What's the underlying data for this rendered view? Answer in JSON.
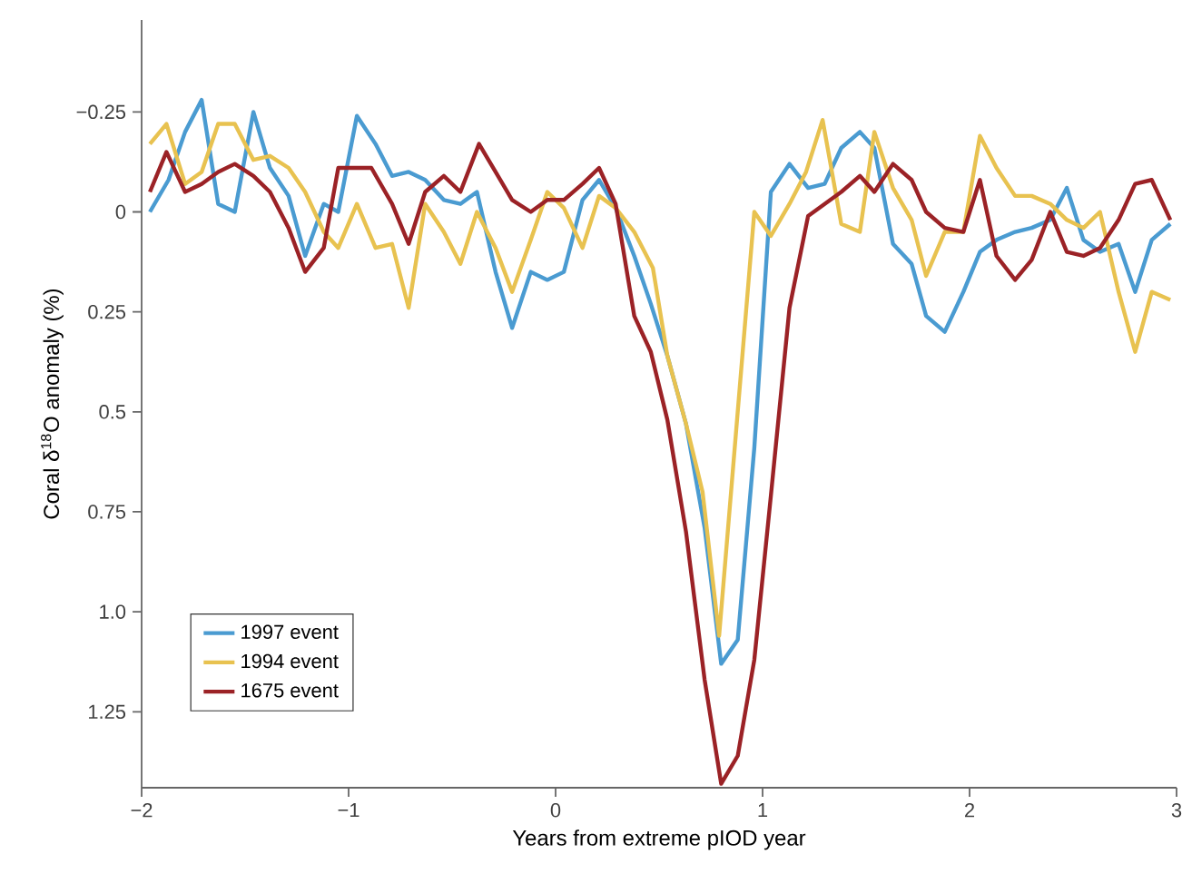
{
  "chart_data": {
    "type": "line",
    "xlabel": "Years from extreme pIOD year",
    "ylabel": "Coral δ$^{18}$O anomaly (%)",
    "xlim": [
      -2,
      3
    ],
    "ylim": [
      1.44,
      -0.48
    ],
    "xticks": [
      {
        "value": -2,
        "label": "−2"
      },
      {
        "value": -1,
        "label": "−1"
      },
      0,
      1,
      2,
      3
    ],
    "yticks": [
      {
        "value": -0.25,
        "label": "−0.25"
      },
      0,
      0.25,
      0.5,
      0.75,
      {
        "value": 1,
        "label": "1.0"
      },
      1.25
    ],
    "legend": "bottom left",
    "grid": false,
    "marker": "none",
    "line_style": "solid",
    "series": [
      {
        "name": "1997 event",
        "color": "#4a9bd1",
        "x": [
          -1.96,
          -1.87,
          -1.79,
          -1.71,
          -1.63,
          -1.55,
          -1.46,
          -1.38,
          -1.29,
          -1.21,
          -1.12,
          -1.05,
          -0.96,
          -0.87,
          -0.79,
          -0.71,
          -0.63,
          -0.54,
          -0.46,
          -0.38,
          -0.29,
          -0.21,
          -0.12,
          -0.04,
          0.04,
          0.13,
          0.21,
          0.29,
          0.38,
          0.46,
          0.54,
          0.63,
          0.72,
          0.8,
          0.88,
          0.96,
          1.04,
          1.13,
          1.22,
          1.3,
          1.38,
          1.47,
          1.54,
          1.63,
          1.72,
          1.79,
          1.88,
          1.97,
          2.05,
          2.13,
          2.22,
          2.3,
          2.39,
          2.47,
          2.55,
          2.63,
          2.72,
          2.8,
          2.88,
          2.97
        ],
        "values": [
          0,
          -0.08,
          -0.2,
          -0.28,
          -0.02,
          0,
          -0.25,
          -0.11,
          -0.04,
          0.11,
          -0.02,
          0,
          -0.24,
          -0.17,
          -0.09,
          -0.1,
          -0.08,
          -0.03,
          -0.02,
          -0.05,
          0.15,
          0.29,
          0.15,
          0.17,
          0.15,
          -0.03,
          -0.08,
          -0.01,
          0.11,
          0.23,
          0.36,
          0.53,
          0.79,
          1.13,
          1.07,
          0.59,
          -0.05,
          -0.12,
          -0.06,
          -0.07,
          -0.16,
          -0.2,
          -0.16,
          0.08,
          0.13,
          0.26,
          0.3,
          0.2,
          0.1,
          0.07,
          0.05,
          0.04,
          0.02,
          -0.06,
          0.07,
          0.1,
          0.08,
          0.2,
          0.07,
          0.03
        ]
      },
      {
        "name": "1994 event",
        "color": "#e8c250",
        "x": [
          -1.96,
          -1.88,
          -1.79,
          -1.71,
          -1.63,
          -1.55,
          -1.46,
          -1.38,
          -1.29,
          -1.21,
          -1.12,
          -1.05,
          -0.96,
          -0.87,
          -0.79,
          -0.71,
          -0.63,
          -0.54,
          -0.46,
          -0.38,
          -0.29,
          -0.21,
          -0.12,
          -0.04,
          0.04,
          0.13,
          0.21,
          0.29,
          0.38,
          0.47,
          0.54,
          0.63,
          0.71,
          0.79,
          0.96,
          1.04,
          1.13,
          1.21,
          1.29,
          1.38,
          1.47,
          1.54,
          1.63,
          1.72,
          1.79,
          1.88,
          1.97,
          2.05,
          2.13,
          2.22,
          2.3,
          2.39,
          2.47,
          2.55,
          2.63,
          2.72,
          2.8,
          2.88,
          2.97
        ],
        "values": [
          -0.17,
          -0.22,
          -0.07,
          -0.1,
          -0.22,
          -0.22,
          -0.13,
          -0.14,
          -0.11,
          -0.05,
          0.05,
          0.09,
          -0.02,
          0.09,
          0.08,
          0.24,
          -0.02,
          0.05,
          0.13,
          0,
          0.09,
          0.2,
          0.07,
          -0.05,
          -0.01,
          0.09,
          -0.04,
          -0.01,
          0.05,
          0.14,
          0.36,
          0.53,
          0.7,
          1.06,
          0,
          0.06,
          -0.02,
          -0.1,
          -0.23,
          0.03,
          0.05,
          -0.2,
          -0.06,
          0.02,
          0.16,
          0.05,
          0.05,
          -0.19,
          -0.11,
          -0.04,
          -0.04,
          -0.02,
          0.02,
          0.04,
          0,
          0.2,
          0.35,
          0.2,
          0.22
        ]
      },
      {
        "name": "1675 event",
        "color": "#9b2226",
        "x": [
          -1.96,
          -1.88,
          -1.79,
          -1.71,
          -1.63,
          -1.55,
          -1.46,
          -1.38,
          -1.29,
          -1.21,
          -1.12,
          -1.05,
          -0.96,
          -0.89,
          -0.79,
          -0.71,
          -0.63,
          -0.54,
          -0.46,
          -0.37,
          -0.29,
          -0.21,
          -0.12,
          -0.04,
          0.04,
          0.13,
          0.21,
          0.29,
          0.38,
          0.46,
          0.54,
          0.63,
          0.72,
          0.8,
          0.88,
          0.96,
          1.04,
          1.13,
          1.22,
          1.3,
          1.38,
          1.47,
          1.54,
          1.63,
          1.72,
          1.79,
          1.88,
          1.97,
          2.05,
          2.13,
          2.22,
          2.3,
          2.39,
          2.47,
          2.55,
          2.63,
          2.72,
          2.8,
          2.88,
          2.97
        ],
        "values": [
          -0.05,
          -0.15,
          -0.05,
          -0.07,
          -0.1,
          -0.12,
          -0.09,
          -0.05,
          0.04,
          0.15,
          0.09,
          -0.11,
          -0.11,
          -0.11,
          -0.02,
          0.08,
          -0.05,
          -0.09,
          -0.05,
          -0.17,
          -0.1,
          -0.03,
          0,
          -0.03,
          -0.03,
          -0.07,
          -0.11,
          -0.02,
          0.26,
          0.35,
          0.52,
          0.8,
          1.17,
          1.43,
          1.36,
          1.12,
          0.71,
          0.24,
          0.01,
          -0.02,
          -0.05,
          -0.09,
          -0.05,
          -0.12,
          -0.08,
          0,
          0.04,
          0.05,
          -0.08,
          0.11,
          0.17,
          0.12,
          0,
          0.1,
          0.11,
          0.09,
          0.02,
          -0.07,
          -0.08,
          0.02
        ]
      }
    ]
  }
}
